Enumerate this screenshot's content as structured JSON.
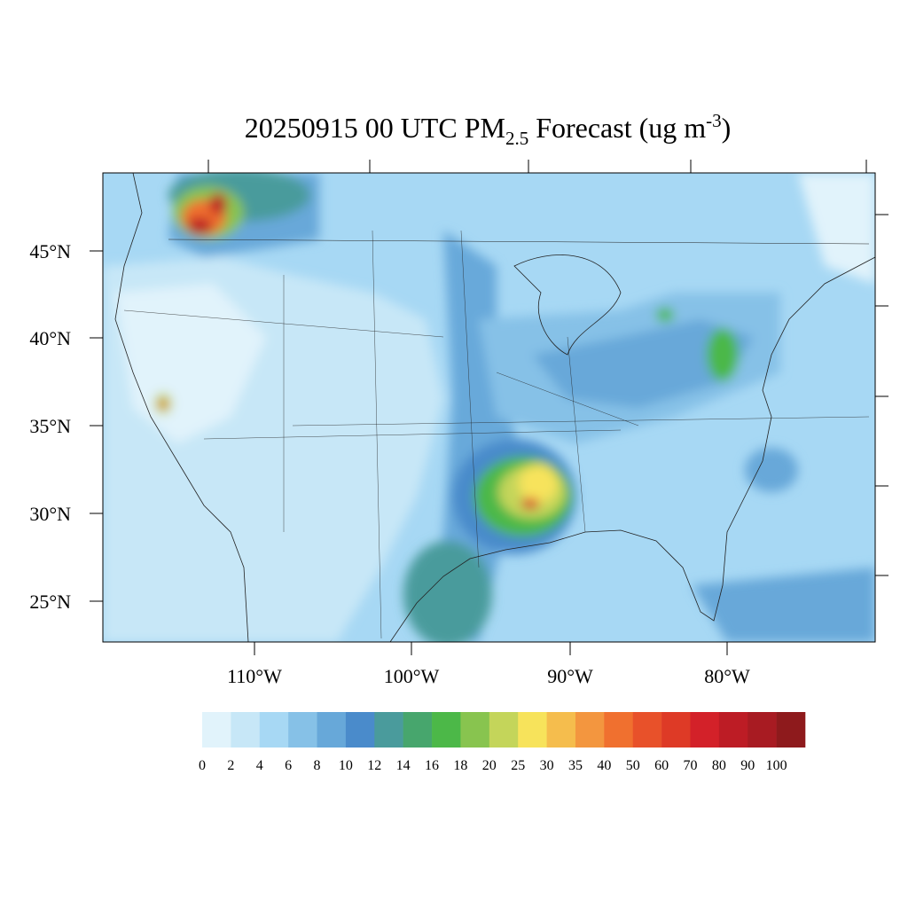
{
  "map": {
    "title": {
      "main": "20250915 00 UTC PM",
      "sub": "2.5",
      "rest": " Forecast (ug m",
      "sup": "-3",
      "end": ")"
    },
    "lat_labels": [
      "45°N",
      "40°N",
      "35°N",
      "30°N",
      "25°N"
    ],
    "lon_labels": [
      "110°W",
      "100°W",
      "90°W",
      "80°W"
    ],
    "colorbar": {
      "labels": [
        0,
        2,
        4,
        6,
        8,
        10,
        12,
        14,
        16,
        18,
        20,
        25,
        30,
        35,
        40,
        50,
        60,
        70,
        80,
        90,
        100
      ],
      "colors": [
        "#e1f3fb",
        "#c7e7f7",
        "#a7d8f4",
        "#86c1e7",
        "#67a8d9",
        "#4a8bcb",
        "#4a9b9c",
        "#47a66d",
        "#4cb848",
        "#88c44f",
        "#c4d55a",
        "#f7e35b",
        "#f5bd4d",
        "#f3963f",
        "#f0702f",
        "#e8512a",
        "#de3a26",
        "#d32129",
        "#bd1c25",
        "#a81b22",
        "#8e1a1c"
      ]
    }
  }
}
